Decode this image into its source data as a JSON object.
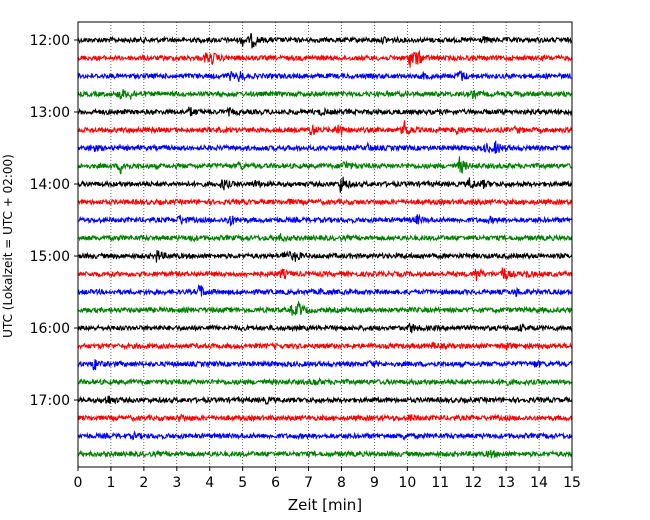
{
  "chart_data": {
    "type": "line",
    "title": "",
    "xlabel": "Zeit  [min]",
    "ylabel": "UTC (Lokalzeit = UTC + 02:00)",
    "xlim": [
      0,
      15
    ],
    "x_ticks": [
      0,
      1,
      2,
      3,
      4,
      5,
      6,
      7,
      8,
      9,
      10,
      11,
      12,
      13,
      14,
      15
    ],
    "y_tick_labels": [
      "12:00",
      "13:00",
      "14:00",
      "15:00",
      "16:00",
      "17:00"
    ],
    "grid": "vertical dotted lines at each minute",
    "trace_interval_minutes": 15,
    "colors": [
      "#000000",
      "#ff0000",
      "#0000ff",
      "#008000"
    ],
    "series": [
      {
        "start": "12:00",
        "color": "#000000",
        "events": [
          [
            5.0,
            0.5
          ],
          [
            5.3,
            0.7
          ],
          [
            9.3,
            0.25
          ],
          [
            12.3,
            0.25
          ]
        ]
      },
      {
        "start": "12:15",
        "color": "#ff0000",
        "events": [
          [
            3.9,
            0.5
          ],
          [
            4.1,
            0.4
          ],
          [
            10.1,
            1.0
          ],
          [
            10.3,
            0.6
          ]
        ]
      },
      {
        "start": "12:30",
        "color": "#0000ff",
        "events": [
          [
            4.9,
            0.5
          ],
          [
            4.6,
            0.35
          ],
          [
            11.6,
            0.6
          ],
          [
            10.5,
            0.25
          ]
        ]
      },
      {
        "start": "12:45",
        "color": "#008000",
        "events": [
          [
            1.3,
            0.6
          ],
          [
            1.6,
            0.4
          ],
          [
            12.0,
            0.3
          ]
        ]
      },
      {
        "start": "13:00",
        "color": "#000000",
        "events": [
          [
            3.4,
            0.45
          ],
          [
            7.4,
            0.25
          ],
          [
            4.6,
            0.25
          ]
        ]
      },
      {
        "start": "13:15",
        "color": "#ff0000",
        "events": [
          [
            7.1,
            0.6
          ],
          [
            7.9,
            0.8
          ],
          [
            9.9,
            1.0
          ],
          [
            11.5,
            0.35
          ],
          [
            13.3,
            0.3
          ]
        ]
      },
      {
        "start": "13:30",
        "color": "#0000ff",
        "events": [
          [
            0.4,
            0.4
          ],
          [
            12.7,
            0.6
          ],
          [
            12.4,
            0.4
          ],
          [
            8.8,
            0.3
          ]
        ]
      },
      {
        "start": "13:45",
        "color": "#008000",
        "events": [
          [
            1.3,
            0.7
          ],
          [
            4.9,
            0.35
          ],
          [
            8.1,
            0.5
          ],
          [
            11.6,
            0.9
          ]
        ]
      },
      {
        "start": "14:00",
        "color": "#000000",
        "events": [
          [
            4.4,
            0.6
          ],
          [
            5.4,
            0.3
          ],
          [
            8.0,
            1.0
          ],
          [
            11.9,
            0.6
          ],
          [
            12.3,
            0.3
          ]
        ]
      },
      {
        "start": "14:15",
        "color": "#ff0000",
        "events": [
          [
            6.4,
            0.15
          ],
          [
            12.0,
            0.15
          ]
        ]
      },
      {
        "start": "14:30",
        "color": "#0000ff",
        "events": [
          [
            3.1,
            0.5
          ],
          [
            4.6,
            0.6
          ],
          [
            10.3,
            0.4
          ],
          [
            12.5,
            0.2
          ]
        ]
      },
      {
        "start": "14:45",
        "color": "#008000",
        "events": [
          [
            6.1,
            0.4
          ],
          [
            3.4,
            0.2
          ]
        ]
      },
      {
        "start": "15:00",
        "color": "#000000",
        "events": [
          [
            2.4,
            0.6
          ],
          [
            6.3,
            0.7
          ],
          [
            6.6,
            0.4
          ]
        ]
      },
      {
        "start": "15:15",
        "color": "#ff0000",
        "events": [
          [
            6.2,
            0.45
          ],
          [
            12.1,
            0.7
          ],
          [
            12.9,
            0.8
          ],
          [
            13.6,
            0.3
          ]
        ]
      },
      {
        "start": "15:30",
        "color": "#0000ff",
        "events": [
          [
            3.7,
            0.7
          ],
          [
            7.4,
            0.25
          ],
          [
            13.3,
            0.3
          ]
        ]
      },
      {
        "start": "15:45",
        "color": "#008000",
        "events": [
          [
            6.7,
            0.7
          ],
          [
            6.5,
            0.4
          ]
        ]
      },
      {
        "start": "16:00",
        "color": "#000000",
        "events": [
          [
            10.1,
            0.5
          ],
          [
            13.4,
            0.25
          ]
        ]
      },
      {
        "start": "16:15",
        "color": "#ff0000",
        "events": [
          [
            10.8,
            0.25
          ],
          [
            13.0,
            0.3
          ]
        ]
      },
      {
        "start": "16:30",
        "color": "#0000ff",
        "events": [
          [
            0.5,
            0.6
          ],
          [
            8.9,
            0.3
          ],
          [
            13.9,
            0.25
          ]
        ]
      },
      {
        "start": "16:45",
        "color": "#008000",
        "events": [
          [
            7.2,
            0.3
          ],
          [
            12.9,
            0.4
          ]
        ]
      },
      {
        "start": "17:00",
        "color": "#000000",
        "events": [
          [
            0.9,
            0.5
          ],
          [
            5.7,
            0.25
          ]
        ]
      },
      {
        "start": "17:15",
        "color": "#ff0000",
        "events": [
          [
            10.1,
            0.3
          ],
          [
            3.1,
            0.25
          ]
        ]
      },
      {
        "start": "17:30",
        "color": "#0000ff",
        "events": [
          [
            1.7,
            0.2
          ],
          [
            9.9,
            0.2
          ]
        ]
      },
      {
        "start": "17:45",
        "color": "#008000",
        "events": [
          [
            12.5,
            0.35
          ]
        ]
      }
    ]
  }
}
